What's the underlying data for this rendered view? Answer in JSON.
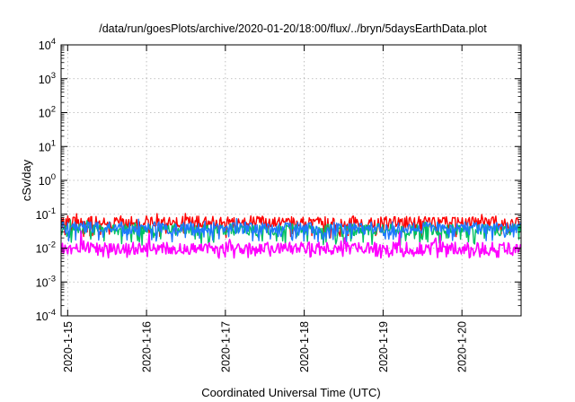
{
  "chart_data": {
    "type": "line",
    "title": "/data/run/goesPlots/archive/2020-01-20/18:00/flux/../bryn/5daysEarthData.plot",
    "xlabel": "Coordinated Universal Time (UTC)",
    "ylabel": "cSv/day",
    "x_scale": "time",
    "y_scale": "log",
    "xlim": [
      "2020-01-14T22:00",
      "2020-01-20T18:00"
    ],
    "ylim": [
      0.0001,
      10000
    ],
    "grid": true,
    "x_ticks": [
      "2020-1-15",
      "2020-1-16",
      "2020-1-17",
      "2020-1-18",
      "2020-1-19",
      "2020-1-20"
    ],
    "y_ticks": [
      {
        "value": 0.0001,
        "base": "10",
        "exp": "-4"
      },
      {
        "value": 0.001,
        "base": "10",
        "exp": "-3"
      },
      {
        "value": 0.01,
        "base": "10",
        "exp": "-2"
      },
      {
        "value": 0.1,
        "base": "10",
        "exp": "-1"
      },
      {
        "value": 1,
        "base": "10",
        "exp": "0"
      },
      {
        "value": 10,
        "base": "10",
        "exp": "1"
      },
      {
        "value": 100,
        "base": "10",
        "exp": "2"
      },
      {
        "value": 1000,
        "base": "10",
        "exp": "3"
      },
      {
        "value": 10000,
        "base": "10",
        "exp": "4"
      }
    ],
    "series": [
      {
        "color": "#ff0000",
        "typical": 0.06,
        "low": 0.02,
        "high": 0.11
      },
      {
        "color": "#00c060",
        "typical": 0.035,
        "low": 0.012,
        "high": 0.07
      },
      {
        "color": "#1e78ff",
        "typical": 0.04,
        "low": 0.015,
        "high": 0.08
      },
      {
        "color": "#ff00ff",
        "typical": 0.01,
        "low": 0.005,
        "high": 0.04
      }
    ]
  }
}
